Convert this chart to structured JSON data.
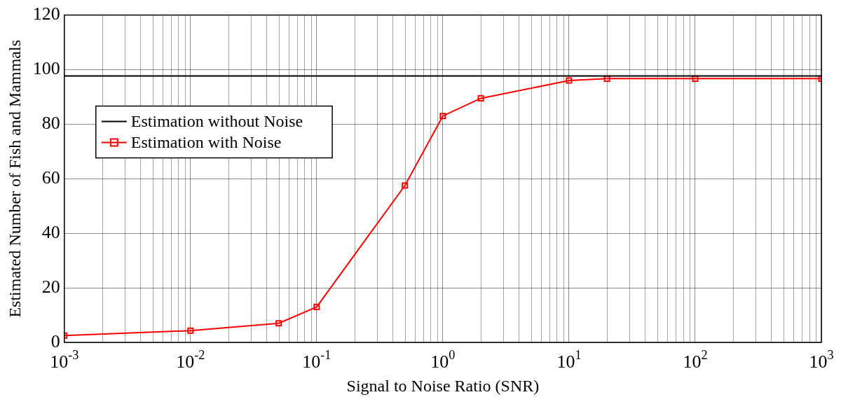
{
  "chart_data": {
    "type": "line",
    "xlabel": "Signal to Noise Ratio (SNR)",
    "ylabel": "Estimated Number of Fish and Mammals",
    "log": "x",
    "xlim": [
      0.001,
      1000
    ],
    "xticks": [
      {
        "value": 0.001,
        "label": "10$^{-3}$"
      },
      {
        "value": 0.01,
        "label": "10$^{-2}$"
      },
      {
        "value": 0.1,
        "label": "10$^{-1}$"
      },
      {
        "value": 1,
        "label": "10$^{0}$"
      },
      {
        "value": 10,
        "label": "10$^{1}$"
      },
      {
        "value": 100,
        "label": "10$^{2}$"
      },
      {
        "value": 1000,
        "label": "10$^{3}$"
      }
    ],
    "ylim": [
      0,
      120
    ],
    "yticks": [
      0,
      20,
      40,
      60,
      80,
      100,
      120
    ],
    "grid": true,
    "legend": "top left",
    "series": [
      {
        "name": "Estimation without Noise",
        "color": "#000000",
        "marker": "none",
        "x": [
          0.001,
          1000
        ],
        "values": [
          97.7,
          97.7
        ]
      },
      {
        "name": "Estimation with Noise",
        "color": "#ff0000",
        "marker": "square",
        "x": [
          0.001,
          0.01,
          0.05,
          0.1,
          0.5,
          1,
          2,
          10,
          20,
          100,
          1000
        ],
        "values": [
          2.5,
          4.3,
          7,
          13,
          57.5,
          83,
          89.5,
          96,
          96.7,
          96.7,
          96.7
        ]
      }
    ]
  }
}
